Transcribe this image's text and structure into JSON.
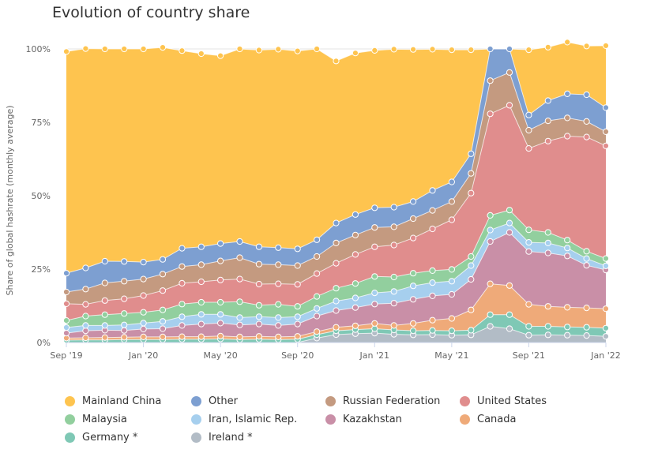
{
  "title": "Evolution of country share",
  "chart_data": {
    "type": "area",
    "stacked": true,
    "title": "Evolution of country share",
    "ylabel": "Share of global hashrate (monthly average)",
    "ylim": [
      0,
      100
    ],
    "y_ticks": [
      "0%",
      "25%",
      "50%",
      "75%",
      "100%"
    ],
    "x_ticks": [
      "Sep '19",
      "Jan '20",
      "May '20",
      "Sep '20",
      "Jan '21",
      "May '21",
      "Sep '21",
      "Jan '22"
    ],
    "x": [
      "2019-09",
      "2019-10",
      "2019-11",
      "2019-12",
      "2020-01",
      "2020-02",
      "2020-03",
      "2020-04",
      "2020-05",
      "2020-06",
      "2020-07",
      "2020-08",
      "2020-09",
      "2020-10",
      "2020-11",
      "2020-12",
      "2021-01",
      "2021-02",
      "2021-03",
      "2021-04",
      "2021-05",
      "2021-06",
      "2021-07",
      "2021-08",
      "2021-09",
      "2021-10",
      "2021-11",
      "2021-12",
      "2022-01"
    ],
    "series": [
      {
        "name": "Ireland *",
        "color": "#b2bcc6",
        "values": [
          0,
          0,
          0,
          0,
          0,
          0,
          0,
          0,
          0,
          0,
          0,
          0,
          0,
          1.5,
          2.7,
          3.0,
          3.2,
          2.8,
          2.6,
          2.7,
          2.5,
          2.6,
          5.5,
          4.7,
          2.5,
          2.6,
          2.5,
          2.4,
          2.1
        ]
      },
      {
        "name": "Germany *",
        "color": "#7fc8b5",
        "values": [
          0.8,
          0.9,
          0.9,
          1.0,
          1.0,
          1.0,
          1.1,
          1.1,
          1.2,
          1.0,
          1.1,
          1.0,
          1.1,
          1.2,
          1.3,
          1.4,
          1.5,
          1.5,
          1.4,
          1.4,
          1.5,
          1.6,
          4.0,
          4.8,
          3.0,
          2.9,
          2.8,
          2.8,
          2.8
        ]
      },
      {
        "name": "Canada",
        "color": "#efaa79",
        "values": [
          0.7,
          0.7,
          0.8,
          0.8,
          0.9,
          0.9,
          0.9,
          0.9,
          1.0,
          0.9,
          1.0,
          0.9,
          1.0,
          1.0,
          1.2,
          1.3,
          1.8,
          1.5,
          2.5,
          3.5,
          4.2,
          6.9,
          10.5,
          9.9,
          7.5,
          6.8,
          6.7,
          6.6,
          6.6
        ]
      },
      {
        "name": "Kazakhstan",
        "color": "#c98fa7",
        "values": [
          1.7,
          2.4,
          2.5,
          2.3,
          2.7,
          2.8,
          3.8,
          4.3,
          4.4,
          4.1,
          4.2,
          3.9,
          4.2,
          5.3,
          5.7,
          6.2,
          6.6,
          7.6,
          8.2,
          8.3,
          8.2,
          10.4,
          14.4,
          18.1,
          18.0,
          18.2,
          17.5,
          14.5,
          13.2
        ]
      },
      {
        "name": "Iran, Islamic Rep.",
        "color": "#a6cfee",
        "values": [
          1.9,
          1.8,
          1.6,
          1.9,
          2.0,
          2.5,
          3.0,
          3.3,
          3.0,
          2.5,
          2.5,
          2.7,
          2.5,
          2.6,
          3.2,
          3.3,
          3.8,
          4.0,
          4.6,
          4.5,
          4.5,
          4.7,
          3.9,
          3.2,
          3.1,
          3.4,
          2.7,
          2.3,
          1.4
        ]
      },
      {
        "name": "Malaysia",
        "color": "#92cf9e",
        "values": [
          2.4,
          3.2,
          3.7,
          3.9,
          3.7,
          3.9,
          4.3,
          4.1,
          4.1,
          5.4,
          3.9,
          4.5,
          3.5,
          4.1,
          4.4,
          4.9,
          5.6,
          4.9,
          4.3,
          4.1,
          4.0,
          3.1,
          5.0,
          4.4,
          4.3,
          3.6,
          2.7,
          2.5,
          2.5
        ]
      },
      {
        "name": "United States",
        "color": "#e08d8d",
        "values": [
          5.7,
          4.0,
          4.8,
          5.0,
          5.7,
          6.6,
          7.1,
          7.0,
          7.6,
          7.7,
          7.2,
          7.0,
          7.5,
          7.8,
          8.5,
          9.9,
          10.1,
          10.9,
          12.0,
          14.2,
          16.9,
          21.6,
          34.6,
          35.7,
          27.7,
          31.1,
          35.4,
          38.9,
          38.4
        ]
      },
      {
        "name": "Russian Federation",
        "color": "#c49a80",
        "values": [
          4.0,
          5.2,
          6.0,
          6.0,
          5.6,
          5.6,
          5.7,
          5.8,
          6.5,
          7.3,
          6.8,
          6.5,
          6.4,
          5.8,
          6.9,
          6.6,
          6.6,
          6.2,
          6.6,
          6.3,
          6.2,
          6.7,
          11.3,
          11.2,
          6.2,
          6.9,
          6.2,
          5.3,
          4.8
        ]
      },
      {
        "name": "Other",
        "color": "#7d9fd1",
        "values": [
          6.4,
          7.2,
          7.4,
          6.7,
          5.8,
          5.0,
          6.2,
          6.1,
          5.9,
          5.5,
          5.9,
          5.8,
          5.7,
          5.7,
          6.8,
          7.0,
          6.7,
          6.7,
          5.8,
          6.8,
          6.7,
          6.7,
          10.8,
          8.0,
          5.2,
          6.9,
          8.2,
          9.1,
          8.2
        ]
      },
      {
        "name": "Mainland China",
        "color": "#fec44f",
        "values": [
          75.5,
          74.7,
          72.3,
          72.4,
          72.6,
          72.2,
          67.3,
          65.8,
          64.0,
          65.6,
          67.0,
          67.6,
          67.4,
          65.0,
          55.2,
          55.0,
          53.6,
          53.8,
          51.8,
          48.1,
          45.0,
          35.4,
          0,
          0,
          22.2,
          18.2,
          17.6,
          16.6,
          21.1
        ]
      }
    ],
    "legend_order": [
      "Mainland China",
      "Other",
      "Russian Federation",
      "United States",
      "Malaysia",
      "Iran, Islamic Rep.",
      "Kazakhstan",
      "Canada",
      "Germany *",
      "Ireland *"
    ],
    "legend_position": "bottom",
    "grid": true
  }
}
